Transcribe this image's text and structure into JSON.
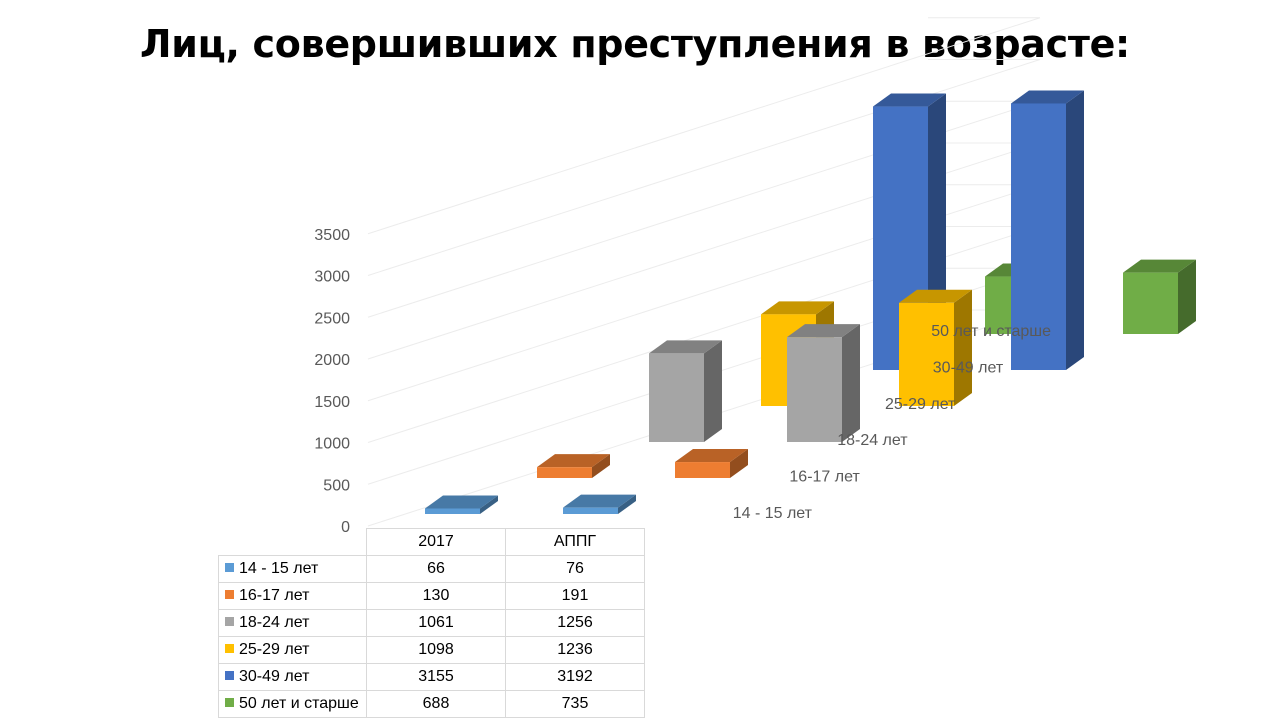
{
  "title": "Лиц, совершивших преступления в возрасте:",
  "chart_data": {
    "type": "bar",
    "variant": "3d-column",
    "categories": [
      "2017",
      "АППГ"
    ],
    "series": [
      {
        "name": "14 - 15 лет",
        "color": "#5B9BD5",
        "values": [
          66,
          76
        ]
      },
      {
        "name": "16-17 лет",
        "color": "#ED7D31",
        "values": [
          130,
          191
        ]
      },
      {
        "name": "18-24 лет",
        "color": "#A5A5A5",
        "values": [
          1061,
          1256
        ]
      },
      {
        "name": "25-29 лет",
        "color": "#FFC000",
        "values": [
          1098,
          1236
        ]
      },
      {
        "name": "30-49 лет",
        "color": "#4472C4",
        "values": [
          3155,
          3192
        ]
      },
      {
        "name": "50 лет и старше",
        "color": "#70AD47",
        "values": [
          688,
          735
        ]
      }
    ],
    "yticks": [
      "0",
      "500",
      "1000",
      "1500",
      "2000",
      "2500",
      "3000",
      "3500"
    ],
    "ylim": [
      0,
      3500
    ],
    "grid": true,
    "legend": "data-table"
  }
}
